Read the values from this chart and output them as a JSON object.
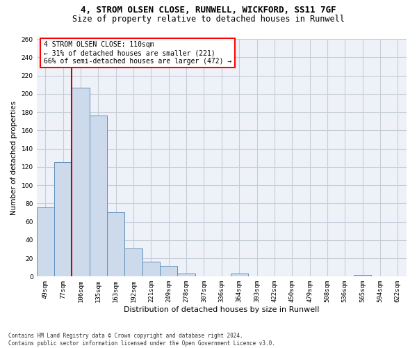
{
  "title1": "4, STROM OLSEN CLOSE, RUNWELL, WICKFORD, SS11 7GF",
  "title2": "Size of property relative to detached houses in Runwell",
  "xlabel": "Distribution of detached houses by size in Runwell",
  "ylabel": "Number of detached properties",
  "categories": [
    "49sqm",
    "77sqm",
    "106sqm",
    "135sqm",
    "163sqm",
    "192sqm",
    "221sqm",
    "249sqm",
    "278sqm",
    "307sqm",
    "336sqm",
    "364sqm",
    "393sqm",
    "422sqm",
    "450sqm",
    "479sqm",
    "508sqm",
    "536sqm",
    "565sqm",
    "594sqm",
    "622sqm"
  ],
  "values": [
    76,
    125,
    207,
    176,
    70,
    31,
    16,
    12,
    3,
    0,
    0,
    3,
    0,
    0,
    0,
    0,
    0,
    0,
    2,
    0,
    0
  ],
  "bar_color": "#ccdaeb",
  "bar_edge_color": "#6090bb",
  "annotation_text": "4 STROM OLSEN CLOSE: 110sqm\n← 31% of detached houses are smaller (221)\n66% of semi-detached houses are larger (472) →",
  "vline_color": "#cc0000",
  "vline_x": 2.0,
  "grid_color": "#c5cdd8",
  "background_color": "#eef2f8",
  "footer": "Contains HM Land Registry data © Crown copyright and database right 2024.\nContains public sector information licensed under the Open Government Licence v3.0.",
  "ylim": [
    0,
    260
  ],
  "yticks": [
    0,
    20,
    40,
    60,
    80,
    100,
    120,
    140,
    160,
    180,
    200,
    220,
    240,
    260
  ],
  "title1_fontsize": 9.0,
  "title2_fontsize": 8.5,
  "ylabel_fontsize": 7.5,
  "xlabel_fontsize": 8.0,
  "tick_fontsize": 6.5,
  "ann_fontsize": 7.0,
  "footer_fontsize": 5.5
}
